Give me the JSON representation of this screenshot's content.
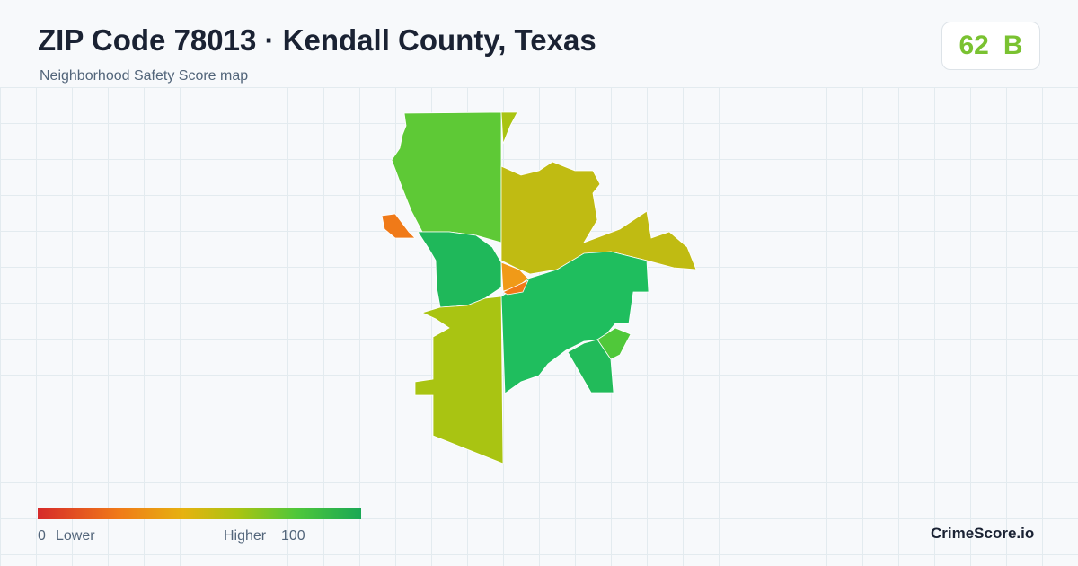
{
  "header": {
    "title": "ZIP Code 78013 · Kendall County, Texas",
    "subtitle": "Neighborhood Safety Score map"
  },
  "score": {
    "value": "62",
    "grade": "B"
  },
  "legend": {
    "min": "0",
    "min_label": "Lower",
    "max_label": "Higher",
    "max": "100"
  },
  "footer": {
    "brand": "CrimeScore.io"
  }
}
